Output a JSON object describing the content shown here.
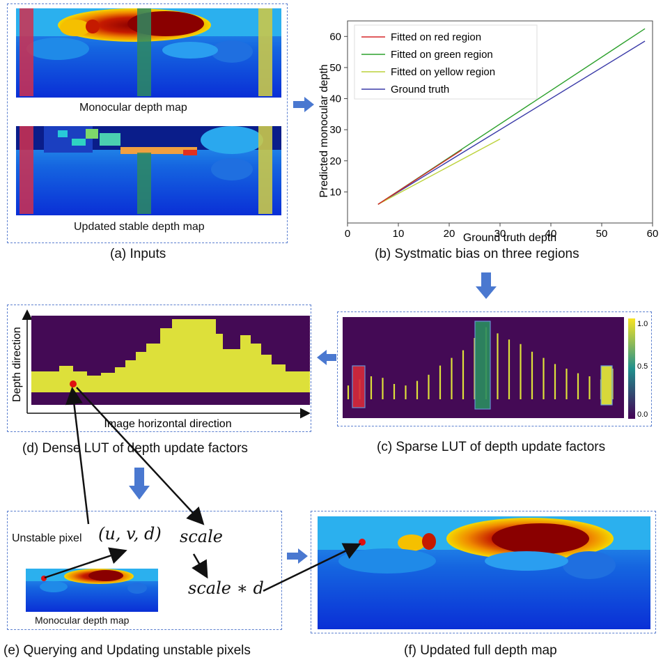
{
  "panel_a": {
    "caption": "(a) Inputs",
    "map1_label": "Monocular depth map",
    "map2_label": "Updated stable depth map"
  },
  "panel_b": {
    "caption": "(b) Systmatic bias on three regions"
  },
  "panel_c": {
    "caption": "(c) Sparse LUT of depth update factors",
    "colorbar_ticks": [
      "1.0",
      "0.5",
      "0.0"
    ]
  },
  "panel_d": {
    "caption": "(d) Dense LUT of depth update factors",
    "y_label": "Depth direction",
    "x_label": "Image horizontal direction"
  },
  "panel_e": {
    "caption": "(e) Querying and Updating unstable pixels",
    "unstable_label": "Unstable pixel",
    "uvd": "(u, v, d)",
    "scale": "scale",
    "scale_d": "scale ∗ d",
    "map_label": "Monocular depth map"
  },
  "panel_f": {
    "caption": "(f) Updated full depth map"
  },
  "colors": {
    "dashed_border": "#5b7fcf",
    "arrow": "#4a78d0",
    "lut_background": "#440a55",
    "lut_fill": "#dde03a",
    "red_line": "#d62728",
    "green_line": "#2ca02c",
    "yellow_line": "#bcd23a",
    "gt_line": "#3a3aa8"
  },
  "chart_data": {
    "type": "line",
    "title": "",
    "xlabel": "Ground truth depth",
    "ylabel": "Predicted monocular depth",
    "xlim": [
      0,
      60
    ],
    "ylim": [
      0,
      65
    ],
    "xticks": [
      0,
      10,
      20,
      30,
      40,
      50,
      60
    ],
    "yticks": [
      10,
      20,
      30,
      40,
      50,
      60
    ],
    "legend_position": "top-left",
    "series": [
      {
        "name": "Fitted on red region",
        "color": "#d62728",
        "x": [
          6,
          22.5
        ],
        "y": [
          6,
          23.5
        ]
      },
      {
        "name": "Fitted on green region",
        "color": "#2ca02c",
        "x": [
          6,
          58.5
        ],
        "y": [
          6,
          62.5
        ]
      },
      {
        "name": "Fitted on yellow region",
        "color": "#bcd23a",
        "x": [
          6,
          30
        ],
        "y": [
          6,
          27
        ]
      },
      {
        "name": "Ground truth",
        "color": "#3a3aa8",
        "x": [
          6,
          58.5
        ],
        "y": [
          6,
          58.5
        ]
      }
    ]
  }
}
